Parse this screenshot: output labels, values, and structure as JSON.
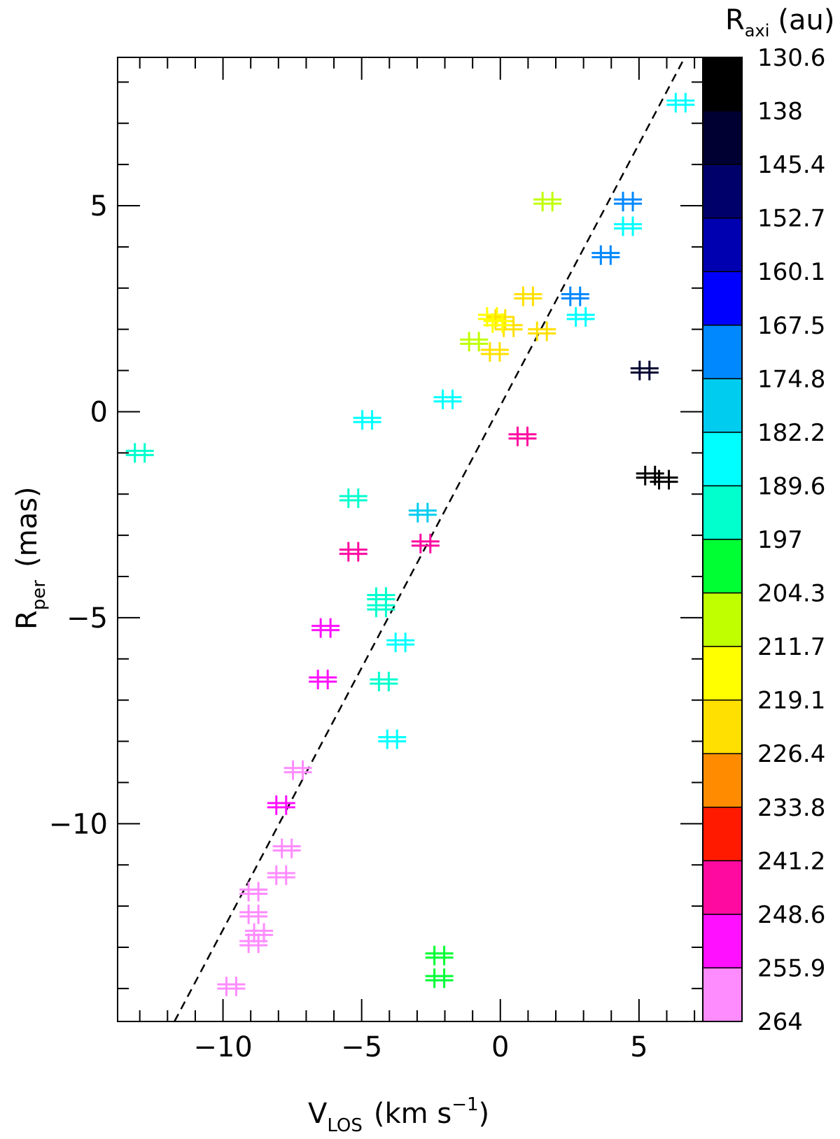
{
  "chart_data": {
    "type": "scatter",
    "xlabel": {
      "main": "V",
      "sub": "LOS",
      "unit": "(km s",
      "exp": "−1",
      "close": ")"
    },
    "ylabel": {
      "main": "R",
      "sub": "per",
      "unit": "(mas)"
    },
    "xlim": [
      -13.8,
      7.3
    ],
    "ylim": [
      -14.8,
      8.6
    ],
    "x_major_ticks": [
      -10,
      -5,
      0,
      5
    ],
    "x_tick_labels": [
      "−10",
      "−5",
      "0",
      "5"
    ],
    "x_minor_ticks": [
      -13,
      -12,
      -11,
      -9,
      -8,
      -7,
      -6,
      -4,
      -3,
      -2,
      -1,
      1,
      2,
      3,
      4,
      6,
      7
    ],
    "y_major_ticks": [
      -10,
      -5,
      0,
      5
    ],
    "y_tick_labels": [
      "−10",
      "−5",
      "0",
      "5"
    ],
    "y_minor_ticks": [
      -14,
      -13,
      -12,
      -11,
      -9,
      -8,
      -7,
      -6,
      -4,
      -3,
      -2,
      -1,
      1,
      2,
      3,
      4,
      6,
      7,
      8
    ],
    "fit_line": {
      "style": "dashed",
      "color": "#000000",
      "from": [
        -11.75,
        -14.8
      ],
      "to": [
        6.65,
        8.6
      ]
    },
    "colorbar": {
      "title": {
        "main": "R",
        "sub": "axi",
        "unit": "(au)"
      },
      "labels": [
        "130.6",
        "138",
        "145.4",
        "152.7",
        "160.1",
        "167.5",
        "174.8",
        "182.2",
        "189.6",
        "197",
        "204.3",
        "211.7",
        "219.1",
        "226.4",
        "233.8",
        "241.2",
        "248.6",
        "255.9",
        "264"
      ],
      "colors": [
        "#000000",
        "#000033",
        "#00006b",
        "#0000b0",
        "#0000ff",
        "#0088ff",
        "#00ccf0",
        "#00ffff",
        "#00ffcc",
        "#00ff33",
        "#c0ff00",
        "#ffff00",
        "#ffe000",
        "#ff8c00",
        "#ff1a00",
        "#ff0aa0",
        "#ff10ff",
        "#ff8cff"
      ]
    },
    "points": [
      {
        "x": 6.5,
        "y": 7.5,
        "color": "#00ffff"
      },
      {
        "x": 1.7,
        "y": 5.1,
        "color": "#c0ff00"
      },
      {
        "x": 4.6,
        "y": 5.1,
        "color": "#0088ff"
      },
      {
        "x": 4.6,
        "y": 4.5,
        "color": "#00ffff"
      },
      {
        "x": 3.8,
        "y": 3.8,
        "color": "#0088ff"
      },
      {
        "x": 1.0,
        "y": 2.8,
        "color": "#ffe000"
      },
      {
        "x": 2.7,
        "y": 2.8,
        "color": "#0088ff"
      },
      {
        "x": 2.9,
        "y": 2.3,
        "color": "#00ffff"
      },
      {
        "x": -0.3,
        "y": 2.3,
        "color": "#ffff00"
      },
      {
        "x": 0.0,
        "y": 2.25,
        "color": "#ffe000"
      },
      {
        "x": 0.3,
        "y": 2.05,
        "color": "#ffe000"
      },
      {
        "x": -0.1,
        "y": 2.15,
        "color": "#ffff00"
      },
      {
        "x": 1.5,
        "y": 1.95,
        "color": "#ffe000"
      },
      {
        "x": -0.95,
        "y": 1.7,
        "color": "#c0ff00"
      },
      {
        "x": -0.2,
        "y": 1.45,
        "color": "#ffe000"
      },
      {
        "x": 5.2,
        "y": 1.0,
        "color": "#000033"
      },
      {
        "x": -1.9,
        "y": 0.3,
        "color": "#00ffff"
      },
      {
        "x": -4.8,
        "y": -0.2,
        "color": "#00ffff"
      },
      {
        "x": 0.8,
        "y": -0.6,
        "color": "#ff0aa0"
      },
      {
        "x": -13.0,
        "y": -1.0,
        "color": "#00ffcc"
      },
      {
        "x": 5.4,
        "y": -1.55,
        "color": "#000000"
      },
      {
        "x": 5.9,
        "y": -1.65,
        "color": "#000000"
      },
      {
        "x": -5.3,
        "y": -2.1,
        "color": "#00ffcc"
      },
      {
        "x": -2.8,
        "y": -2.45,
        "color": "#00ccf0"
      },
      {
        "x": -2.7,
        "y": -3.2,
        "color": "#ff0aa0"
      },
      {
        "x": -5.3,
        "y": -3.4,
        "color": "#ff0aa0"
      },
      {
        "x": -4.3,
        "y": -4.5,
        "color": "#00ffcc"
      },
      {
        "x": -4.3,
        "y": -4.75,
        "color": "#00ffcc"
      },
      {
        "x": -6.3,
        "y": -5.25,
        "color": "#ff10ff"
      },
      {
        "x": -3.6,
        "y": -5.6,
        "color": "#00ffff"
      },
      {
        "x": -6.4,
        "y": -6.5,
        "color": "#ff10ff"
      },
      {
        "x": -4.2,
        "y": -6.55,
        "color": "#00ffcc"
      },
      {
        "x": -3.9,
        "y": -7.95,
        "color": "#00ffff"
      },
      {
        "x": -7.3,
        "y": -8.7,
        "color": "#ff8cff"
      },
      {
        "x": -7.9,
        "y": -9.55,
        "color": "#ff10ff"
      },
      {
        "x": -7.7,
        "y": -10.6,
        "color": "#ff8cff"
      },
      {
        "x": -7.9,
        "y": -11.25,
        "color": "#ff8cff"
      },
      {
        "x": -8.9,
        "y": -11.65,
        "color": "#ff8cff"
      },
      {
        "x": -8.9,
        "y": -12.2,
        "color": "#ff8cff"
      },
      {
        "x": -8.7,
        "y": -12.65,
        "color": "#ff8cff"
      },
      {
        "x": -8.9,
        "y": -12.9,
        "color": "#ff8cff"
      },
      {
        "x": -2.2,
        "y": -13.2,
        "color": "#00ff33"
      },
      {
        "x": -2.2,
        "y": -13.75,
        "color": "#00ff33"
      },
      {
        "x": -9.7,
        "y": -13.95,
        "color": "#ff8cff"
      }
    ]
  }
}
